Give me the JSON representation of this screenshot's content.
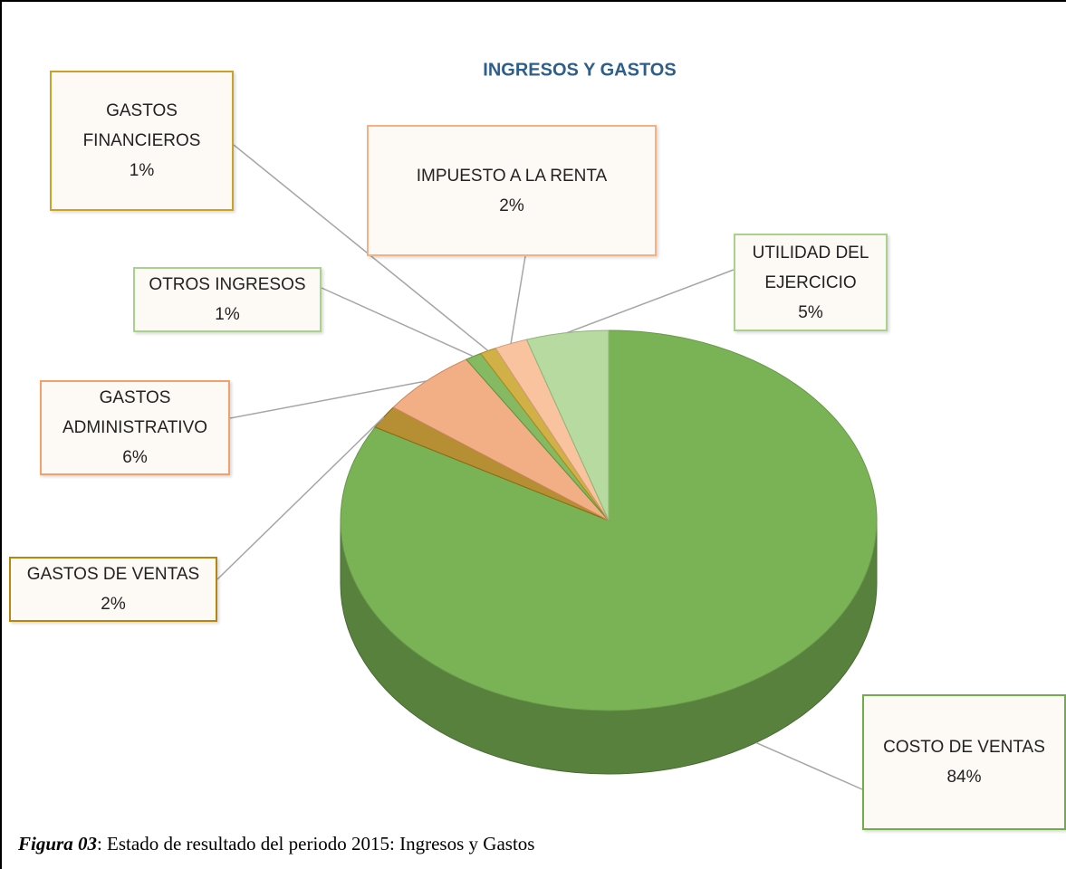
{
  "chart_data": {
    "type": "pie",
    "title": "INGRESOS Y GASTOS",
    "categories": [
      "COSTO DE VENTAS",
      "GASTOS DE VENTAS",
      "GASTOS ADMINISTRATIVO",
      "OTROS INGRESOS",
      "GASTOS FINANCIEROS",
      "IMPUESTO A LA RENTA",
      "UTILIDAD DEL EJERCICIO"
    ],
    "values": [
      84,
      2,
      6,
      1,
      1,
      2,
      5
    ],
    "value_labels": [
      "84%",
      "2%",
      "6%",
      "1%",
      "1%",
      "2%",
      "5%"
    ],
    "colors": [
      "#7ab356",
      "#a97b10",
      "#f0a070",
      "#70ad47",
      "#c9a227",
      "#f8b88f",
      "#a9d48e"
    ]
  },
  "caption": {
    "label": "Figura 03",
    "text": ": Estado de resultado del periodo 2015: Ingresos y Gastos"
  }
}
